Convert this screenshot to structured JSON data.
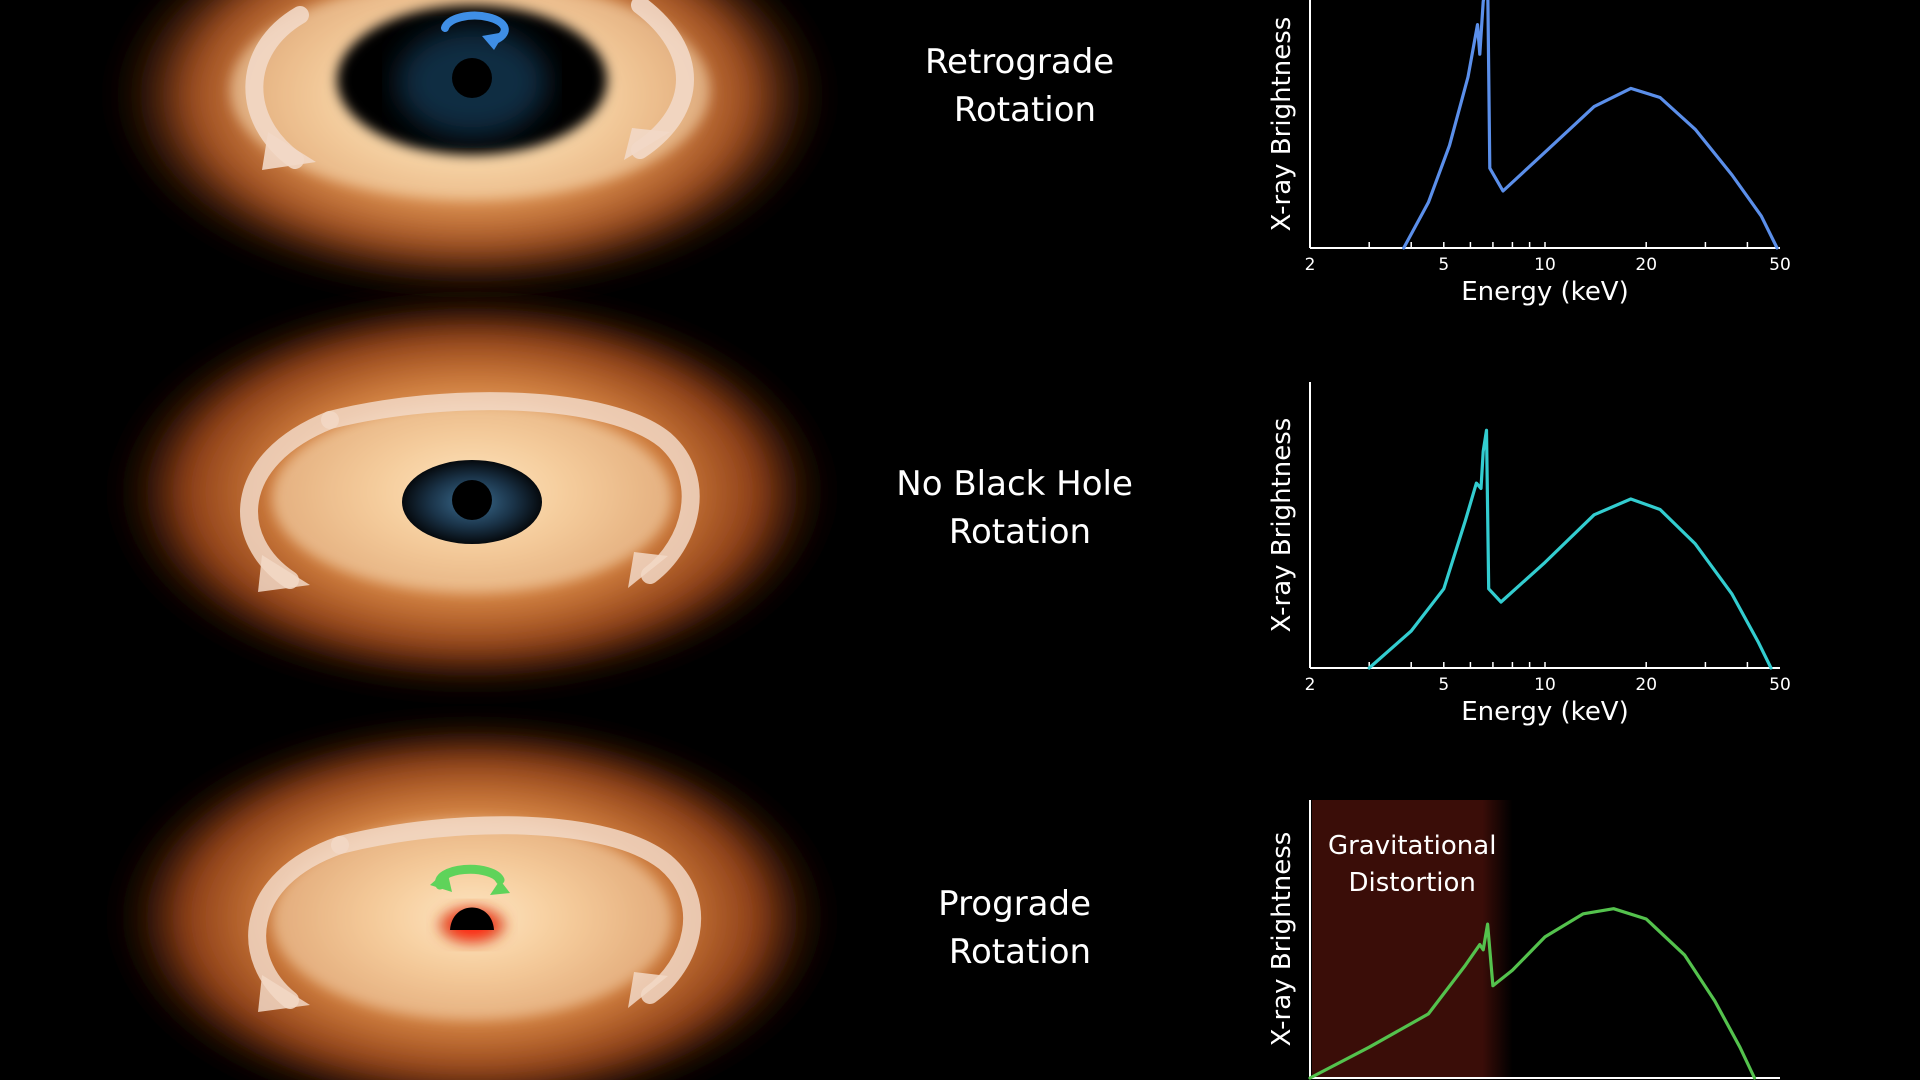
{
  "panels": [
    {
      "id": "retrograde",
      "label_line1": "Retrograde",
      "label_line2": "Rotation",
      "arrow_color": "#3f8fe6",
      "hole_style": "large-dark",
      "has_spin_arrow": true
    },
    {
      "id": "none",
      "label_line1": "No Black Hole",
      "label_line2": "Rotation",
      "arrow_color": "",
      "hole_style": "medium-blue",
      "has_spin_arrow": false
    },
    {
      "id": "prograde",
      "label_line1": "Prograde",
      "label_line2": "Rotation",
      "arrow_color": "#5fd35a",
      "hole_style": "small-red",
      "has_spin_arrow": true
    }
  ],
  "chart_data": [
    {
      "type": "line",
      "xlabel": "Energy (keV)",
      "ylabel": "X-ray Brightness",
      "xscale": "log",
      "xlim": [
        2,
        50
      ],
      "x_ticks": [
        "2",
        "5",
        "10",
        "20",
        "50"
      ],
      "line_color": "#5b8fea",
      "series": [
        {
          "values": [
            [
              3.8,
              0.0
            ],
            [
              4.5,
              0.2
            ],
            [
              5.2,
              0.45
            ],
            [
              5.9,
              0.75
            ],
            [
              6.3,
              0.98
            ],
            [
              6.4,
              0.85
            ],
            [
              6.55,
              1.08
            ],
            [
              6.75,
              1.2
            ],
            [
              6.85,
              0.35
            ],
            [
              7.5,
              0.25
            ],
            [
              10,
              0.42
            ],
            [
              14,
              0.62
            ],
            [
              18,
              0.7
            ],
            [
              22,
              0.66
            ],
            [
              28,
              0.52
            ],
            [
              36,
              0.32
            ],
            [
              44,
              0.14
            ],
            [
              49,
              0.0
            ]
          ]
        }
      ]
    },
    {
      "type": "line",
      "xlabel": "Energy (keV)",
      "ylabel": "X-ray Brightness",
      "xscale": "log",
      "xlim": [
        2,
        50
      ],
      "x_ticks": [
        "2",
        "5",
        "10",
        "20",
        "50"
      ],
      "line_color": "#33cdd0",
      "series": [
        {
          "values": [
            [
              3.0,
              0.0
            ],
            [
              4.0,
              0.14
            ],
            [
              5.0,
              0.3
            ],
            [
              5.8,
              0.56
            ],
            [
              6.25,
              0.7
            ],
            [
              6.45,
              0.68
            ],
            [
              6.55,
              0.82
            ],
            [
              6.7,
              0.9
            ],
            [
              6.8,
              0.3
            ],
            [
              7.4,
              0.25
            ],
            [
              10,
              0.4
            ],
            [
              14,
              0.58
            ],
            [
              18,
              0.64
            ],
            [
              22,
              0.6
            ],
            [
              28,
              0.47
            ],
            [
              36,
              0.28
            ],
            [
              43,
              0.1
            ],
            [
              47,
              0.0
            ]
          ]
        }
      ]
    },
    {
      "type": "line",
      "xlabel": "",
      "ylabel": "X-ray Brightness",
      "xscale": "log",
      "xlim": [
        2,
        50
      ],
      "x_ticks": [],
      "line_color": "#54c24d",
      "annotation_line1": "Gravitational",
      "annotation_line2": "Distortion",
      "annotation_range": [
        2,
        8
      ],
      "series": [
        {
          "values": [
            [
              2.0,
              0.0
            ],
            [
              3.0,
              0.12
            ],
            [
              4.5,
              0.25
            ],
            [
              5.8,
              0.44
            ],
            [
              6.4,
              0.52
            ],
            [
              6.55,
              0.5
            ],
            [
              6.75,
              0.6
            ],
            [
              7.0,
              0.36
            ],
            [
              8.0,
              0.42
            ],
            [
              10,
              0.55
            ],
            [
              13,
              0.64
            ],
            [
              16,
              0.66
            ],
            [
              20,
              0.62
            ],
            [
              26,
              0.48
            ],
            [
              32,
              0.3
            ],
            [
              38,
              0.12
            ],
            [
              42,
              0.0
            ]
          ]
        }
      ]
    }
  ]
}
